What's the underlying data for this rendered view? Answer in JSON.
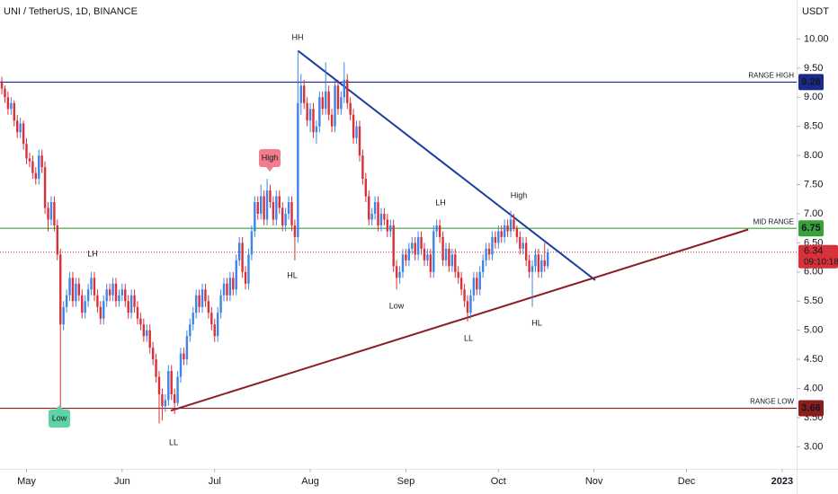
{
  "chart_data": {
    "type": "candlestick",
    "title": "UNI / TetherUS, 1D, BINANCE",
    "currency": "USDT",
    "countdown": "09:10:18",
    "up_color": "#3d85e8",
    "down_color": "#d9313a",
    "ylim": [
      2.62,
      10.67
    ],
    "yticks": [
      {
        "value": 10,
        "label": "10.00"
      },
      {
        "value": 9.5,
        "label": "9.50"
      },
      {
        "value": 9,
        "label": "9.00"
      },
      {
        "value": 8.5,
        "label": "8.50"
      },
      {
        "value": 8,
        "label": "8.00"
      },
      {
        "value": 7.5,
        "label": "7.50"
      },
      {
        "value": 7,
        "label": "7.00"
      },
      {
        "value": 6.5,
        "label": "6.50"
      },
      {
        "value": 6,
        "label": "6.00"
      },
      {
        "value": 5.5,
        "label": "5.50"
      },
      {
        "value": 5,
        "label": "5.00"
      },
      {
        "value": 4.5,
        "label": "4.50"
      },
      {
        "value": 4,
        "label": "4.00"
      },
      {
        "value": 3.5,
        "label": "3.50"
      },
      {
        "value": 3,
        "label": "3.00"
      }
    ],
    "xlim": [
      -0.6,
      257.7
    ],
    "xticks": [
      {
        "value": 8,
        "label": "May"
      },
      {
        "value": 39,
        "label": "Jun"
      },
      {
        "value": 69,
        "label": "Jul"
      },
      {
        "value": 100,
        "label": "Aug"
      },
      {
        "value": 131,
        "label": "Sep"
      },
      {
        "value": 161,
        "label": "Oct"
      },
      {
        "value": 192,
        "label": "Nov"
      },
      {
        "value": 222,
        "label": "Dec"
      },
      {
        "value": 253,
        "label": "2023"
      }
    ],
    "levels": [
      {
        "name": "RANGE HIGH",
        "value": 9.26,
        "color": "#1b2a86"
      },
      {
        "name": "MID RANGE",
        "value": 6.75,
        "color": "#3aa13a"
      },
      {
        "name": "RANGE LOW",
        "value": 3.66,
        "color": "#8c1d1d"
      }
    ],
    "trendlines": [
      {
        "color": "#1c3f9e",
        "points": [
          [
            96,
            9.8
          ],
          [
            192.4,
            5.86
          ]
        ]
      },
      {
        "color": "#8c1d24",
        "points": [
          [
            54.8,
            3.62
          ],
          [
            242,
            6.73
          ]
        ]
      }
    ],
    "annotations": [
      {
        "text": "HH",
        "color": "#d9313a"
      },
      {
        "text": "High",
        "color": "#f27d8c",
        "badge": true
      },
      {
        "text": "LH",
        "color": "#d9313a"
      },
      {
        "text": "HL",
        "color": "#2962ff"
      },
      {
        "text": "LH",
        "color": "#d9313a"
      },
      {
        "text": "High",
        "color": "#d9313a"
      },
      {
        "text": "Low",
        "color": "#2962ff"
      },
      {
        "text": "LL",
        "color": "#2962ff"
      },
      {
        "text": "HL",
        "color": "#2962ff"
      },
      {
        "text": "LL",
        "color": "#2962ff"
      },
      {
        "text": "Low",
        "color": "#5fd3a6",
        "badge": true
      }
    ],
    "ohlc": [
      [
        9.25,
        9.35,
        9.05,
        9.15
      ],
      [
        9.15,
        9.2,
        8.9,
        9.0
      ],
      [
        9.0,
        9.1,
        8.7,
        8.8
      ],
      [
        8.8,
        9.0,
        8.7,
        8.9
      ],
      [
        8.9,
        8.95,
        8.5,
        8.6
      ],
      [
        8.6,
        8.7,
        8.3,
        8.4
      ],
      [
        8.4,
        8.65,
        8.3,
        8.55
      ],
      [
        8.55,
        8.6,
        8.1,
        8.2
      ],
      [
        8.2,
        8.3,
        7.85,
        7.95
      ],
      [
        7.95,
        8.05,
        7.8,
        7.9
      ],
      [
        7.9,
        8.0,
        7.6,
        7.7
      ],
      [
        7.7,
        7.8,
        7.5,
        7.6
      ],
      [
        7.6,
        8.1,
        7.5,
        8.0
      ],
      [
        8.0,
        8.1,
        7.7,
        7.8
      ],
      [
        7.8,
        7.9,
        7.0,
        7.1
      ],
      [
        7.1,
        7.2,
        6.7,
        6.9
      ],
      [
        6.9,
        7.3,
        6.8,
        7.2
      ],
      [
        7.2,
        7.3,
        6.7,
        6.8
      ],
      [
        6.8,
        6.9,
        6.2,
        6.3
      ],
      [
        6.3,
        6.4,
        3.66,
        5.1
      ],
      [
        5.1,
        5.5,
        5.0,
        5.4
      ],
      [
        5.4,
        5.7,
        5.3,
        5.6
      ],
      [
        5.6,
        6.0,
        5.5,
        5.9
      ],
      [
        5.9,
        6.0,
        5.4,
        5.5
      ],
      [
        5.5,
        5.9,
        5.4,
        5.8
      ],
      [
        5.8,
        5.9,
        5.5,
        5.6
      ],
      [
        5.6,
        5.7,
        5.2,
        5.3
      ],
      [
        5.3,
        5.6,
        5.2,
        5.5
      ],
      [
        5.5,
        5.8,
        5.4,
        5.7
      ],
      [
        5.7,
        6.0,
        5.6,
        5.9
      ],
      [
        5.9,
        6.0,
        5.5,
        5.6
      ],
      [
        5.6,
        5.7,
        5.3,
        5.4
      ],
      [
        5.4,
        5.5,
        5.1,
        5.2
      ],
      [
        5.2,
        5.6,
        5.1,
        5.5
      ],
      [
        5.5,
        5.8,
        5.4,
        5.7
      ],
      [
        5.7,
        5.8,
        5.5,
        5.6
      ],
      [
        5.6,
        5.9,
        5.5,
        5.8
      ],
      [
        5.8,
        5.9,
        5.4,
        5.5
      ],
      [
        5.5,
        5.7,
        5.4,
        5.6
      ],
      [
        5.6,
        5.8,
        5.5,
        5.7
      ],
      [
        5.7,
        5.8,
        5.4,
        5.5
      ],
      [
        5.5,
        5.6,
        5.2,
        5.3
      ],
      [
        5.3,
        5.7,
        5.2,
        5.6
      ],
      [
        5.6,
        5.7,
        5.3,
        5.4
      ],
      [
        5.4,
        5.5,
        5.1,
        5.2
      ],
      [
        5.2,
        5.3,
        5.0,
        5.1
      ],
      [
        5.1,
        5.2,
        4.8,
        4.9
      ],
      [
        4.9,
        5.1,
        4.8,
        5.0
      ],
      [
        5.0,
        5.1,
        4.6,
        4.7
      ],
      [
        4.7,
        4.8,
        4.4,
        4.5
      ],
      [
        4.5,
        4.6,
        4.1,
        4.2
      ],
      [
        4.2,
        4.3,
        3.4,
        3.9
      ],
      [
        3.9,
        4.0,
        3.45,
        3.7
      ],
      [
        3.7,
        3.9,
        3.6,
        3.8
      ],
      [
        3.8,
        4.4,
        3.7,
        4.3
      ],
      [
        4.3,
        4.4,
        3.8,
        3.9
      ],
      [
        3.9,
        4.0,
        3.56,
        3.75
      ],
      [
        3.75,
        4.3,
        3.7,
        4.2
      ],
      [
        4.2,
        4.7,
        4.1,
        4.6
      ],
      [
        4.6,
        4.7,
        4.4,
        4.5
      ],
      [
        4.5,
        5.0,
        4.4,
        4.9
      ],
      [
        4.9,
        5.2,
        4.8,
        5.1
      ],
      [
        5.1,
        5.4,
        5.0,
        5.3
      ],
      [
        5.3,
        5.7,
        5.2,
        5.6
      ],
      [
        5.6,
        5.7,
        5.3,
        5.4
      ],
      [
        5.4,
        5.8,
        5.3,
        5.7
      ],
      [
        5.7,
        5.8,
        5.4,
        5.5
      ],
      [
        5.5,
        5.6,
        5.2,
        5.3
      ],
      [
        5.3,
        5.4,
        5.0,
        5.1
      ],
      [
        5.1,
        5.2,
        4.8,
        4.9
      ],
      [
        4.9,
        5.4,
        4.8,
        5.3
      ],
      [
        5.3,
        5.7,
        5.2,
        5.6
      ],
      [
        5.6,
        5.9,
        5.5,
        5.8
      ],
      [
        5.8,
        5.9,
        5.5,
        5.6
      ],
      [
        5.6,
        6.0,
        5.5,
        5.9
      ],
      [
        5.9,
        6.0,
        5.6,
        5.7
      ],
      [
        5.7,
        6.3,
        5.6,
        6.2
      ],
      [
        6.2,
        6.6,
        6.1,
        6.5
      ],
      [
        6.5,
        6.6,
        5.9,
        6.0
      ],
      [
        6.0,
        6.1,
        5.7,
        5.8
      ],
      [
        5.8,
        6.4,
        5.7,
        6.3
      ],
      [
        6.3,
        6.8,
        6.2,
        6.7
      ],
      [
        6.7,
        7.3,
        6.6,
        7.2
      ],
      [
        7.2,
        7.3,
        6.9,
        7.0
      ],
      [
        7.0,
        7.5,
        6.9,
        7.3
      ],
      [
        7.3,
        7.4,
        6.8,
        6.9
      ],
      [
        6.9,
        7.6,
        6.8,
        7.4
      ],
      [
        7.4,
        7.5,
        7.1,
        7.2
      ],
      [
        7.2,
        7.3,
        6.8,
        6.9
      ],
      [
        6.9,
        7.4,
        6.8,
        7.3
      ],
      [
        7.3,
        7.4,
        7.0,
        7.1
      ],
      [
        7.1,
        7.2,
        6.7,
        6.8
      ],
      [
        6.8,
        7.1,
        6.7,
        7.0
      ],
      [
        7.0,
        7.3,
        6.9,
        7.2
      ],
      [
        7.2,
        7.3,
        6.7,
        6.8
      ],
      [
        6.8,
        6.9,
        6.2,
        6.6
      ],
      [
        6.6,
        9.8,
        6.5,
        8.9
      ],
      [
        8.9,
        9.4,
        8.7,
        9.2
      ],
      [
        9.2,
        9.3,
        8.8,
        8.9
      ],
      [
        8.9,
        9.0,
        8.5,
        8.6
      ],
      [
        8.6,
        8.9,
        8.4,
        8.8
      ],
      [
        8.8,
        8.9,
        8.3,
        8.4
      ],
      [
        8.4,
        8.6,
        8.2,
        8.5
      ],
      [
        8.5,
        9.1,
        8.4,
        9.0
      ],
      [
        9.0,
        9.1,
        8.7,
        8.8
      ],
      [
        8.8,
        9.6,
        8.7,
        9.1
      ],
      [
        9.1,
        9.2,
        8.6,
        8.7
      ],
      [
        8.7,
        8.8,
        8.4,
        8.5
      ],
      [
        8.5,
        9.3,
        8.4,
        9.2
      ],
      [
        9.2,
        9.3,
        8.7,
        8.8
      ],
      [
        8.8,
        9.1,
        8.7,
        9.0
      ],
      [
        9.0,
        9.6,
        8.9,
        9.3
      ],
      [
        9.3,
        9.4,
        8.8,
        8.9
      ],
      [
        8.9,
        9.0,
        8.6,
        8.7
      ],
      [
        8.7,
        8.8,
        8.2,
        8.3
      ],
      [
        8.3,
        8.6,
        8.2,
        8.5
      ],
      [
        8.5,
        8.6,
        7.9,
        8.0
      ],
      [
        8.0,
        8.1,
        7.5,
        7.6
      ],
      [
        7.6,
        7.7,
        7.2,
        7.3
      ],
      [
        7.3,
        7.4,
        6.8,
        6.9
      ],
      [
        6.9,
        7.1,
        6.8,
        7.0
      ],
      [
        7.0,
        7.3,
        6.9,
        7.2
      ],
      [
        7.2,
        7.3,
        6.7,
        6.8
      ],
      [
        6.8,
        7.1,
        6.7,
        7.0
      ],
      [
        7.0,
        7.1,
        6.8,
        6.9
      ],
      [
        6.9,
        7.0,
        6.6,
        6.7
      ],
      [
        6.7,
        6.9,
        6.6,
        6.8
      ],
      [
        6.8,
        6.9,
        6.0,
        6.1
      ],
      [
        6.1,
        6.2,
        5.7,
        5.9
      ],
      [
        5.9,
        6.1,
        5.8,
        6.0
      ],
      [
        6.0,
        6.4,
        5.9,
        6.3
      ],
      [
        6.3,
        6.4,
        6.1,
        6.2
      ],
      [
        6.2,
        6.5,
        6.1,
        6.4
      ],
      [
        6.4,
        6.6,
        6.3,
        6.5
      ],
      [
        6.5,
        6.6,
        6.2,
        6.3
      ],
      [
        6.3,
        6.7,
        6.2,
        6.6
      ],
      [
        6.6,
        6.7,
        6.3,
        6.4
      ],
      [
        6.4,
        6.5,
        6.1,
        6.2
      ],
      [
        6.2,
        6.4,
        6.1,
        6.3
      ],
      [
        6.3,
        6.4,
        5.9,
        6.0
      ],
      [
        6.0,
        6.8,
        5.9,
        6.7
      ],
      [
        6.7,
        6.9,
        6.6,
        6.8
      ],
      [
        6.8,
        6.9,
        6.5,
        6.6
      ],
      [
        6.6,
        6.7,
        6.1,
        6.2
      ],
      [
        6.2,
        6.5,
        6.1,
        6.4
      ],
      [
        6.4,
        6.5,
        6.0,
        6.1
      ],
      [
        6.1,
        6.4,
        6.0,
        6.3
      ],
      [
        6.3,
        6.4,
        5.9,
        6.0
      ],
      [
        6.0,
        6.1,
        5.8,
        5.9
      ],
      [
        5.9,
        6.0,
        5.6,
        5.7
      ],
      [
        5.7,
        5.8,
        5.4,
        5.5
      ],
      [
        5.5,
        5.6,
        5.15,
        5.3
      ],
      [
        5.3,
        5.7,
        5.2,
        5.6
      ],
      [
        5.6,
        6.0,
        5.5,
        5.9
      ],
      [
        5.9,
        6.0,
        5.6,
        5.7
      ],
      [
        5.7,
        6.1,
        5.6,
        6.0
      ],
      [
        6.0,
        6.3,
        5.9,
        6.2
      ],
      [
        6.2,
        6.5,
        6.1,
        6.4
      ],
      [
        6.4,
        6.5,
        6.2,
        6.3
      ],
      [
        6.3,
        6.7,
        6.2,
        6.6
      ],
      [
        6.6,
        6.7,
        6.4,
        6.5
      ],
      [
        6.5,
        6.8,
        6.4,
        6.7
      ],
      [
        6.7,
        6.8,
        6.5,
        6.6
      ],
      [
        6.6,
        6.9,
        6.5,
        6.8
      ],
      [
        6.8,
        6.9,
        6.6,
        6.7
      ],
      [
        6.7,
        7.05,
        6.6,
        6.9
      ],
      [
        6.9,
        7.0,
        6.7,
        6.75
      ],
      [
        6.75,
        6.8,
        6.5,
        6.6
      ],
      [
        6.6,
        6.7,
        6.3,
        6.4
      ],
      [
        6.4,
        6.6,
        6.3,
        6.5
      ],
      [
        6.5,
        6.6,
        6.1,
        6.2
      ],
      [
        6.2,
        6.3,
        5.9,
        6.0
      ],
      [
        6.0,
        6.2,
        5.4,
        6.1
      ],
      [
        6.1,
        6.4,
        6.0,
        6.3
      ],
      [
        6.3,
        6.4,
        5.9,
        6.0
      ],
      [
        6.0,
        6.3,
        5.9,
        6.2
      ],
      [
        6.2,
        6.5,
        6.0,
        6.1
      ],
      [
        6.1,
        6.4,
        6.05,
        6.34
      ]
    ]
  }
}
